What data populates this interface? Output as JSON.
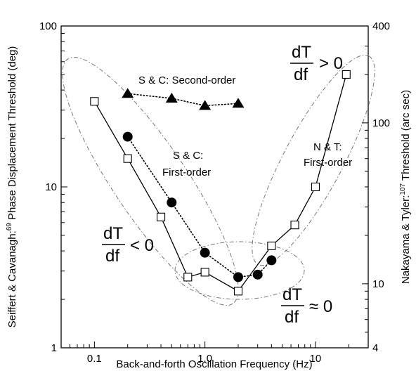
{
  "chart_data": {
    "type": "scatter",
    "x_scale": "log",
    "y_scale": "log",
    "xlim": [
      0.05,
      30
    ],
    "ylim": [
      1,
      100
    ],
    "y2lim": [
      4,
      400
    ],
    "grid": false,
    "xlabel": "Back-and-forth Oscillation Frequency (Hz)",
    "ylabel_parts": [
      "Seiffert & Cavanagh:",
      "69",
      " Phase Displacement Threshold (deg)"
    ],
    "y2label_parts": [
      "Nakayama & Tyler:",
      "107",
      " Threshold (arc sec)"
    ],
    "x_ticks": [
      {
        "value": 0.1,
        "label": "0.1"
      },
      {
        "value": 1,
        "label": "1.0"
      },
      {
        "value": 10,
        "label": "10"
      }
    ],
    "y_ticks": [
      {
        "value": 1,
        "label": "1"
      },
      {
        "value": 10,
        "label": "10"
      },
      {
        "value": 100,
        "label": "100"
      }
    ],
    "y2_ticks": [
      {
        "value": 4,
        "label": "4"
      },
      {
        "value": 10,
        "label": "10"
      },
      {
        "value": 100,
        "label": "100"
      },
      {
        "value": 400,
        "label": "400"
      }
    ],
    "series": [
      {
        "marker": "triangle",
        "line": "dotted",
        "x": [
          0.2,
          0.5,
          1.0,
          2.0
        ],
        "y": [
          38,
          35.5,
          32,
          33
        ]
      },
      {
        "marker": "circle",
        "line": "dotted",
        "x": [
          0.2,
          0.5,
          1.0,
          2.0,
          3.0,
          4.0
        ],
        "y": [
          20.5,
          8,
          3.9,
          2.75,
          2.85,
          3.5
        ]
      },
      {
        "marker": "open-square",
        "line": "solid",
        "x": [
          0.1,
          0.2,
          0.4,
          0.7,
          1.0,
          2.0,
          4.0,
          6.5,
          10,
          19
        ],
        "y": [
          34,
          15,
          6.5,
          2.75,
          2.95,
          2.25,
          4.3,
          5.8,
          10,
          50
        ]
      }
    ],
    "annotations": {
      "second_order": "S & C: Second-order",
      "sc_first_1": "S & C:",
      "sc_first_2": "First-order",
      "nt_first_1": "N & T:",
      "nt_first_2": "First-order",
      "dtdf_num": "dT",
      "dtdf_den": "df",
      "gt": "> 0",
      "lt": "< 0",
      "approx": "≈ 0"
    }
  }
}
